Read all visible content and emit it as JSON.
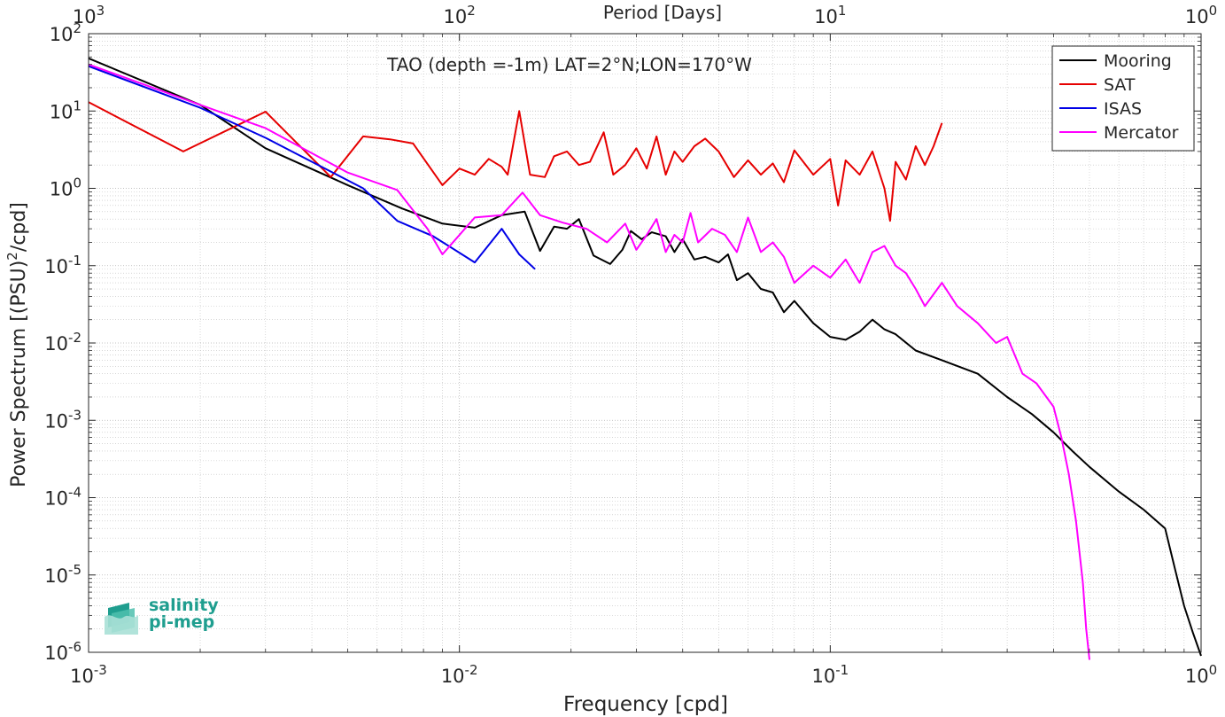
{
  "chart_data": {
    "type": "line",
    "title": "TAO (depth =-1m) LAT=2°N;LON=170°W",
    "xlabel": "Frequency [cpd]",
    "x2label": "Period [Days]",
    "ylabel_main": "Power Spectrum [(PSU)",
    "ylabel_sup": "2",
    "ylabel_tail": "/cpd]",
    "xscale": "log",
    "yscale": "log",
    "xlim": [
      0.001,
      1
    ],
    "ylim": [
      1e-06,
      100
    ],
    "grid": true,
    "legend_position": "top-right",
    "x_ticks": [
      {
        "value": 0.001,
        "base": "10",
        "exp": "-3"
      },
      {
        "value": 0.01,
        "base": "10",
        "exp": "-2"
      },
      {
        "value": 0.1,
        "base": "10",
        "exp": "-1"
      },
      {
        "value": 1,
        "base": "10",
        "exp": "0"
      }
    ],
    "x2_ticks": [
      {
        "value": 0.001,
        "base": "10",
        "exp": "3"
      },
      {
        "value": 0.01,
        "base": "10",
        "exp": "2"
      },
      {
        "value": 0.1,
        "base": "10",
        "exp": "1"
      },
      {
        "value": 1,
        "base": "10",
        "exp": "0"
      }
    ],
    "y_ticks": [
      {
        "value": 100,
        "base": "10",
        "exp": "2"
      },
      {
        "value": 10,
        "base": "10",
        "exp": "1"
      },
      {
        "value": 1,
        "base": "10",
        "exp": "0"
      },
      {
        "value": 0.1,
        "base": "10",
        "exp": "-1"
      },
      {
        "value": 0.01,
        "base": "10",
        "exp": "-2"
      },
      {
        "value": 0.001,
        "base": "10",
        "exp": "-3"
      },
      {
        "value": 0.0001,
        "base": "10",
        "exp": "-4"
      },
      {
        "value": 1e-05,
        "base": "10",
        "exp": "-5"
      },
      {
        "value": 1e-06,
        "base": "10",
        "exp": "-6"
      }
    ],
    "series": [
      {
        "name": "Mooring",
        "color": "#000000",
        "points": [
          [
            0.001,
            48
          ],
          [
            0.002,
            12
          ],
          [
            0.003,
            3.3
          ],
          [
            0.005,
            1.1
          ],
          [
            0.007,
            0.55
          ],
          [
            0.009,
            0.35
          ],
          [
            0.011,
            0.31
          ],
          [
            0.013,
            0.45
          ],
          [
            0.015,
            0.5
          ],
          [
            0.0165,
            0.155
          ],
          [
            0.018,
            0.32
          ],
          [
            0.0195,
            0.3
          ],
          [
            0.021,
            0.4
          ],
          [
            0.023,
            0.135
          ],
          [
            0.0255,
            0.105
          ],
          [
            0.0275,
            0.16
          ],
          [
            0.029,
            0.28
          ],
          [
            0.031,
            0.22
          ],
          [
            0.033,
            0.27
          ],
          [
            0.036,
            0.24
          ],
          [
            0.038,
            0.15
          ],
          [
            0.04,
            0.22
          ],
          [
            0.043,
            0.12
          ],
          [
            0.046,
            0.13
          ],
          [
            0.05,
            0.11
          ],
          [
            0.053,
            0.14
          ],
          [
            0.056,
            0.065
          ],
          [
            0.06,
            0.08
          ],
          [
            0.065,
            0.05
          ],
          [
            0.07,
            0.045
          ],
          [
            0.075,
            0.025
          ],
          [
            0.08,
            0.035
          ],
          [
            0.09,
            0.018
          ],
          [
            0.1,
            0.012
          ],
          [
            0.11,
            0.011
          ],
          [
            0.12,
            0.014
          ],
          [
            0.13,
            0.02
          ],
          [
            0.14,
            0.015
          ],
          [
            0.15,
            0.013
          ],
          [
            0.17,
            0.008
          ],
          [
            0.2,
            0.006
          ],
          [
            0.25,
            0.004
          ],
          [
            0.3,
            0.002
          ],
          [
            0.35,
            0.0012
          ],
          [
            0.4,
            0.0007
          ],
          [
            0.45,
            0.0004
          ],
          [
            0.5,
            0.00025
          ],
          [
            0.6,
            0.00012
          ],
          [
            0.7,
            7e-05
          ],
          [
            0.8,
            4e-05
          ],
          [
            0.85,
            1.2e-05
          ],
          [
            0.9,
            4e-06
          ],
          [
            0.95,
            1.8e-06
          ],
          [
            1.0,
            9e-07
          ]
        ]
      },
      {
        "name": "SAT",
        "color": "#e60000",
        "points": [
          [
            0.001,
            13
          ],
          [
            0.0018,
            3.0
          ],
          [
            0.003,
            9.8
          ],
          [
            0.0045,
            1.4
          ],
          [
            0.0055,
            4.7
          ],
          [
            0.0065,
            4.3
          ],
          [
            0.0075,
            3.8
          ],
          [
            0.009,
            1.1
          ],
          [
            0.01,
            1.8
          ],
          [
            0.011,
            1.5
          ],
          [
            0.012,
            2.4
          ],
          [
            0.013,
            1.9
          ],
          [
            0.0135,
            1.5
          ],
          [
            0.0145,
            10
          ],
          [
            0.0155,
            1.5
          ],
          [
            0.017,
            1.4
          ],
          [
            0.018,
            2.6
          ],
          [
            0.0195,
            3.0
          ],
          [
            0.021,
            2.0
          ],
          [
            0.0225,
            2.2
          ],
          [
            0.0245,
            5.3
          ],
          [
            0.026,
            1.5
          ],
          [
            0.028,
            2.0
          ],
          [
            0.03,
            3.3
          ],
          [
            0.032,
            1.8
          ],
          [
            0.034,
            4.7
          ],
          [
            0.036,
            1.5
          ],
          [
            0.038,
            3.0
          ],
          [
            0.04,
            2.2
          ],
          [
            0.043,
            3.5
          ],
          [
            0.046,
            4.4
          ],
          [
            0.05,
            3.0
          ],
          [
            0.055,
            1.4
          ],
          [
            0.06,
            2.3
          ],
          [
            0.065,
            1.5
          ],
          [
            0.07,
            2.1
          ],
          [
            0.075,
            1.2
          ],
          [
            0.08,
            3.1
          ],
          [
            0.09,
            1.5
          ],
          [
            0.1,
            2.4
          ],
          [
            0.105,
            0.6
          ],
          [
            0.11,
            2.3
          ],
          [
            0.12,
            1.5
          ],
          [
            0.13,
            3.0
          ],
          [
            0.14,
            1.0
          ],
          [
            0.145,
            0.38
          ],
          [
            0.15,
            2.2
          ],
          [
            0.16,
            1.3
          ],
          [
            0.17,
            3.5
          ],
          [
            0.18,
            2.0
          ],
          [
            0.19,
            3.5
          ],
          [
            0.2,
            7.0
          ]
        ]
      },
      {
        "name": "ISAS",
        "color": "#0000e6",
        "points": [
          [
            0.001,
            38
          ],
          [
            0.002,
            11
          ],
          [
            0.003,
            4.5
          ],
          [
            0.0055,
            1.0
          ],
          [
            0.0068,
            0.38
          ],
          [
            0.0085,
            0.24
          ],
          [
            0.011,
            0.11
          ],
          [
            0.013,
            0.3
          ],
          [
            0.0145,
            0.14
          ],
          [
            0.016,
            0.09
          ]
        ]
      },
      {
        "name": "Mercator",
        "color": "#ff00ff",
        "points": [
          [
            0.001,
            40
          ],
          [
            0.002,
            12
          ],
          [
            0.003,
            6
          ],
          [
            0.005,
            1.6
          ],
          [
            0.0068,
            0.95
          ],
          [
            0.0082,
            0.3
          ],
          [
            0.009,
            0.14
          ],
          [
            0.011,
            0.42
          ],
          [
            0.013,
            0.45
          ],
          [
            0.0148,
            0.88
          ],
          [
            0.0165,
            0.45
          ],
          [
            0.019,
            0.36
          ],
          [
            0.022,
            0.3
          ],
          [
            0.025,
            0.2
          ],
          [
            0.028,
            0.35
          ],
          [
            0.03,
            0.16
          ],
          [
            0.032,
            0.25
          ],
          [
            0.034,
            0.4
          ],
          [
            0.036,
            0.15
          ],
          [
            0.038,
            0.25
          ],
          [
            0.04,
            0.2
          ],
          [
            0.042,
            0.48
          ],
          [
            0.044,
            0.2
          ],
          [
            0.048,
            0.3
          ],
          [
            0.052,
            0.25
          ],
          [
            0.056,
            0.15
          ],
          [
            0.06,
            0.42
          ],
          [
            0.065,
            0.15
          ],
          [
            0.07,
            0.2
          ],
          [
            0.075,
            0.13
          ],
          [
            0.08,
            0.06
          ],
          [
            0.09,
            0.1
          ],
          [
            0.1,
            0.07
          ],
          [
            0.11,
            0.12
          ],
          [
            0.12,
            0.06
          ],
          [
            0.13,
            0.15
          ],
          [
            0.14,
            0.18
          ],
          [
            0.15,
            0.1
          ],
          [
            0.16,
            0.08
          ],
          [
            0.17,
            0.05
          ],
          [
            0.18,
            0.03
          ],
          [
            0.2,
            0.06
          ],
          [
            0.22,
            0.03
          ],
          [
            0.25,
            0.018
          ],
          [
            0.28,
            0.01
          ],
          [
            0.3,
            0.012
          ],
          [
            0.33,
            0.004
          ],
          [
            0.36,
            0.003
          ],
          [
            0.4,
            0.0015
          ],
          [
            0.42,
            0.0006
          ],
          [
            0.44,
            0.0002
          ],
          [
            0.46,
            5e-05
          ],
          [
            0.48,
            8e-06
          ],
          [
            0.49,
            2e-06
          ],
          [
            0.5,
            8e-07
          ]
        ]
      }
    ]
  },
  "logo": {
    "line1": "salinity",
    "line2": "pi-mep"
  }
}
